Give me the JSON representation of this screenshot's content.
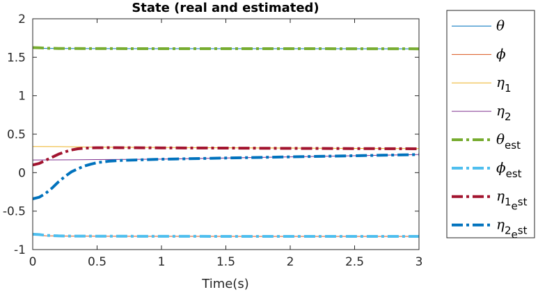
{
  "chart_data": {
    "type": "line",
    "title": "State (real and estimated)",
    "xlabel": "Time(s)",
    "ylabel": "",
    "xlim": [
      0,
      3
    ],
    "ylim": [
      -1,
      2
    ],
    "xticks": [
      0,
      0.5,
      1,
      1.5,
      2,
      2.5,
      3
    ],
    "xtick_labels": [
      "0",
      "0.5",
      "1",
      "1.5",
      "2",
      "2.5",
      "3"
    ],
    "yticks": [
      -1,
      -0.5,
      0,
      0.5,
      1,
      1.5,
      2
    ],
    "ytick_labels": [
      "-1",
      "-0.5",
      "0",
      "0.5",
      "1",
      "1.5",
      "2"
    ],
    "grid": false,
    "legend_position": "outside-right",
    "series": [
      {
        "name": "θ",
        "sub": "",
        "color": "#0072BD",
        "style": "solid",
        "x": [
          0,
          0.05,
          0.1,
          0.3,
          0.5,
          1,
          2,
          3
        ],
        "y": [
          1.62,
          1.617,
          1.615,
          1.613,
          1.612,
          1.611,
          1.611,
          1.61
        ]
      },
      {
        "name": "ϕ",
        "sub": "",
        "color": "#D95319",
        "style": "solid",
        "x": [
          0,
          0.05,
          0.1,
          0.3,
          0.5,
          1,
          2,
          3
        ],
        "y": [
          -0.81,
          -0.815,
          -0.82,
          -0.825,
          -0.826,
          -0.827,
          -0.828,
          -0.828
        ]
      },
      {
        "name": "η",
        "sub": "1",
        "color": "#EDB120",
        "style": "solid",
        "x": [
          0,
          0.2,
          0.35,
          0.5,
          1,
          1.5,
          2,
          2.5,
          3
        ],
        "y": [
          0.34,
          0.338,
          0.335,
          0.332,
          0.327,
          0.323,
          0.319,
          0.315,
          0.312
        ]
      },
      {
        "name": "η",
        "sub": "2",
        "color": "#7E2F8E",
        "style": "solid",
        "x": [
          0,
          0.3,
          0.5,
          0.75,
          1,
          1.5,
          2,
          2.5,
          3
        ],
        "y": [
          0.165,
          0.167,
          0.17,
          0.172,
          0.176,
          0.19,
          0.205,
          0.22,
          0.235
        ]
      },
      {
        "name": "θ",
        "sub": "est",
        "color": "#77AC30",
        "style": "dashdot",
        "x": [
          0,
          0.05,
          0.1,
          0.2,
          0.3,
          0.5,
          1,
          2,
          3
        ],
        "y": [
          1.625,
          1.622,
          1.618,
          1.614,
          1.613,
          1.612,
          1.611,
          1.611,
          1.61
        ]
      },
      {
        "name": "ϕ",
        "sub": "est",
        "color": "#4DBEEE",
        "style": "dashdot",
        "x": [
          0,
          0.05,
          0.1,
          0.2,
          0.3,
          0.5,
          1,
          2,
          3
        ],
        "y": [
          -0.8,
          -0.805,
          -0.815,
          -0.822,
          -0.825,
          -0.826,
          -0.827,
          -0.828,
          -0.828
        ]
      },
      {
        "name": "η",
        "sub": "1",
        "sub2": "e",
        "tail": "st",
        "color": "#A2142F",
        "style": "dashdot",
        "x": [
          0,
          0.05,
          0.1,
          0.15,
          0.2,
          0.25,
          0.3,
          0.35,
          0.4,
          0.45,
          0.5,
          0.6,
          0.8,
          1,
          1.5,
          2,
          2.5,
          3
        ],
        "y": [
          0.1,
          0.12,
          0.16,
          0.2,
          0.24,
          0.27,
          0.295,
          0.31,
          0.318,
          0.322,
          0.324,
          0.325,
          0.324,
          0.322,
          0.319,
          0.316,
          0.313,
          0.31
        ]
      },
      {
        "name": "η",
        "sub": "2",
        "sub2": "e",
        "tail": "st",
        "color": "#0072BD",
        "style": "dashdot",
        "x": [
          0,
          0.05,
          0.1,
          0.15,
          0.2,
          0.25,
          0.3,
          0.35,
          0.4,
          0.45,
          0.5,
          0.6,
          0.7,
          0.8,
          1,
          1.5,
          2,
          2.5,
          3
        ],
        "y": [
          -0.34,
          -0.32,
          -0.27,
          -0.2,
          -0.12,
          -0.05,
          0.01,
          0.05,
          0.085,
          0.11,
          0.13,
          0.15,
          0.16,
          0.165,
          0.175,
          0.19,
          0.205,
          0.22,
          0.235
        ]
      }
    ]
  }
}
